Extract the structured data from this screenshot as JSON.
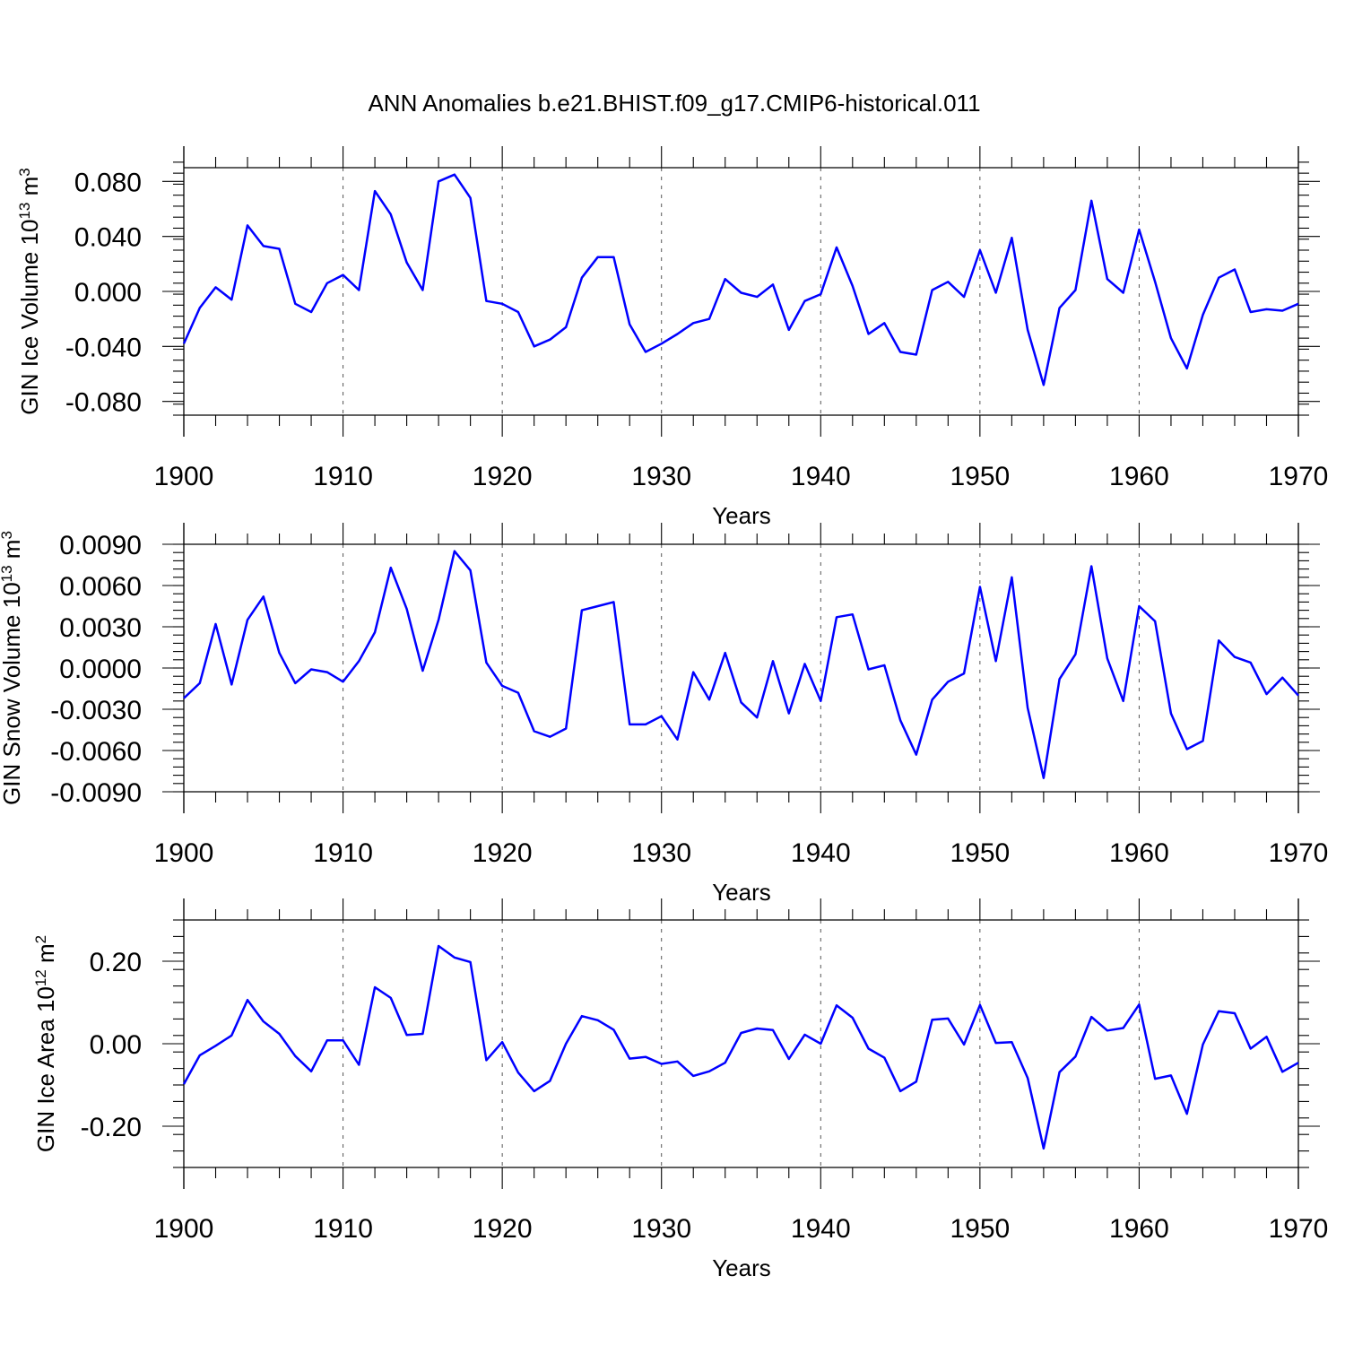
{
  "title": "ANN Anomalies b.e21.BHIST.f09_g17.CMIP6-historical.011",
  "line_color": "#0000ff",
  "chart_data": [
    {
      "type": "line",
      "name": "ice-volume",
      "xlabel": "Years",
      "ylabel_main": "GIN Ice Volume 10",
      "ylabel_exp": "13",
      "ylabel_unit": " m",
      "ylabel_unit_exp": "3",
      "xlim": [
        1900,
        1970
      ],
      "ylim": [
        -0.09,
        0.09
      ],
      "grid": "dashed vertical every 10 years",
      "xticks": [
        "1900",
        "1910",
        "1920",
        "1930",
        "1940",
        "1950",
        "1960",
        "1970"
      ],
      "yticks": [
        {
          "value": 0.08,
          "label": "0.080"
        },
        {
          "value": 0.04,
          "label": "0.040"
        },
        {
          "value": 0.0,
          "label": "0.000"
        },
        {
          "value": -0.04,
          "label": "-0.040"
        },
        {
          "value": -0.08,
          "label": "-0.080"
        }
      ],
      "x": [
        1900,
        1901,
        1902,
        1903,
        1904,
        1905,
        1906,
        1907,
        1908,
        1909,
        1910,
        1911,
        1912,
        1913,
        1914,
        1915,
        1916,
        1917,
        1918,
        1919,
        1920,
        1921,
        1922,
        1923,
        1924,
        1925,
        1926,
        1927,
        1928,
        1929,
        1930,
        1931,
        1932,
        1933,
        1934,
        1935,
        1936,
        1937,
        1938,
        1939,
        1940,
        1941,
        1942,
        1943,
        1944,
        1945,
        1946,
        1947,
        1948,
        1949,
        1950,
        1951,
        1952,
        1953,
        1954,
        1955,
        1956,
        1957,
        1958,
        1959,
        1960,
        1961,
        1962,
        1963,
        1964,
        1965,
        1966,
        1967,
        1968,
        1969,
        1970
      ],
      "values": [
        -0.038,
        -0.012,
        0.003,
        -0.006,
        0.048,
        0.033,
        0.031,
        -0.009,
        -0.015,
        0.006,
        0.012,
        0.001,
        0.073,
        0.056,
        0.021,
        0.001,
        0.08,
        0.085,
        0.068,
        -0.007,
        -0.009,
        -0.015,
        -0.04,
        -0.035,
        -0.026,
        0.01,
        0.025,
        0.025,
        -0.024,
        -0.044,
        -0.038,
        -0.031,
        -0.023,
        -0.02,
        0.009,
        -0.001,
        -0.004,
        0.005,
        -0.028,
        -0.007,
        -0.002,
        0.032,
        0.004,
        -0.031,
        -0.023,
        -0.044,
        -0.046,
        0.001,
        0.007,
        -0.004,
        0.03,
        -0.001,
        0.039,
        -0.028,
        -0.068,
        -0.012,
        0.001,
        0.066,
        0.009,
        -0.001,
        0.045,
        0.007,
        -0.034,
        -0.056,
        -0.017,
        0.01,
        0.016,
        -0.015,
        -0.013,
        -0.014,
        -0.009
      ]
    },
    {
      "type": "line",
      "name": "snow-volume",
      "xlabel": "Years",
      "ylabel_main": "GIN Snow Volume 10",
      "ylabel_exp": "13",
      "ylabel_unit": " m",
      "ylabel_unit_exp": "3",
      "xlim": [
        1900,
        1970
      ],
      "ylim": [
        -0.009,
        0.009
      ],
      "grid": "dashed vertical every 10 years",
      "xticks": [
        "1900",
        "1910",
        "1920",
        "1930",
        "1940",
        "1950",
        "1960",
        "1970"
      ],
      "yticks": [
        {
          "value": 0.009,
          "label": "0.0090"
        },
        {
          "value": 0.006,
          "label": "0.0060"
        },
        {
          "value": 0.003,
          "label": "0.0030"
        },
        {
          "value": 0.0,
          "label": "0.0000"
        },
        {
          "value": -0.003,
          "label": "-0.0030"
        },
        {
          "value": -0.006,
          "label": "-0.0060"
        },
        {
          "value": -0.009,
          "label": "-0.0090"
        }
      ],
      "x": [
        1900,
        1901,
        1902,
        1903,
        1904,
        1905,
        1906,
        1907,
        1908,
        1909,
        1910,
        1911,
        1912,
        1913,
        1914,
        1915,
        1916,
        1917,
        1918,
        1919,
        1920,
        1921,
        1922,
        1923,
        1924,
        1925,
        1926,
        1927,
        1928,
        1929,
        1930,
        1931,
        1932,
        1933,
        1934,
        1935,
        1936,
        1937,
        1938,
        1939,
        1940,
        1941,
        1942,
        1943,
        1944,
        1945,
        1946,
        1947,
        1948,
        1949,
        1950,
        1951,
        1952,
        1953,
        1954,
        1955,
        1956,
        1957,
        1958,
        1959,
        1960,
        1961,
        1962,
        1963,
        1964,
        1965,
        1966,
        1967,
        1968,
        1969,
        1970
      ],
      "values": [
        -0.0022,
        -0.0011,
        0.0032,
        -0.0012,
        0.0035,
        0.0052,
        0.0011,
        -0.0011,
        -0.0001,
        -0.0003,
        -0.001,
        0.0005,
        0.0026,
        0.0073,
        0.0043,
        -0.0002,
        0.0035,
        0.0085,
        0.0071,
        0.0004,
        -0.0013,
        -0.0018,
        -0.0046,
        -0.005,
        -0.0044,
        0.0042,
        0.0045,
        0.0048,
        -0.0041,
        -0.0041,
        -0.0035,
        -0.0052,
        -0.0003,
        -0.0023,
        0.0011,
        -0.0025,
        -0.0036,
        0.0005,
        -0.0033,
        0.0003,
        -0.0024,
        0.0037,
        0.0039,
        -0.0001,
        0.0002,
        -0.0038,
        -0.0063,
        -0.0023,
        -0.001,
        -0.0004,
        0.0059,
        0.0005,
        0.0066,
        -0.0029,
        -0.008,
        -0.0008,
        0.001,
        0.0074,
        0.0007,
        -0.0024,
        0.0045,
        0.0034,
        -0.0033,
        -0.0059,
        -0.0053,
        0.002,
        0.0008,
        0.0004,
        -0.0019,
        -0.0007,
        -0.002
      ]
    },
    {
      "type": "line",
      "name": "ice-area",
      "xlabel": "Years",
      "ylabel_main": "GIN Ice Area 10",
      "ylabel_exp": "12",
      "ylabel_unit": " m",
      "ylabel_unit_exp": "2",
      "xlim": [
        1900,
        1970
      ],
      "ylim": [
        -0.3,
        0.3
      ],
      "grid": "dashed vertical every 10 years",
      "xticks": [
        "1900",
        "1910",
        "1920",
        "1930",
        "1940",
        "1950",
        "1960",
        "1970"
      ],
      "yticks": [
        {
          "value": 0.2,
          "label": "0.20"
        },
        {
          "value": 0.0,
          "label": "0.00"
        },
        {
          "value": -0.2,
          "label": "-0.20"
        }
      ],
      "x": [
        1900,
        1901,
        1902,
        1903,
        1904,
        1905,
        1906,
        1907,
        1908,
        1909,
        1910,
        1911,
        1912,
        1913,
        1914,
        1915,
        1916,
        1917,
        1918,
        1919,
        1920,
        1921,
        1922,
        1923,
        1924,
        1925,
        1926,
        1927,
        1928,
        1929,
        1930,
        1931,
        1932,
        1933,
        1934,
        1935,
        1936,
        1937,
        1938,
        1939,
        1940,
        1941,
        1942,
        1943,
        1944,
        1945,
        1946,
        1947,
        1948,
        1949,
        1950,
        1951,
        1952,
        1953,
        1954,
        1955,
        1956,
        1957,
        1958,
        1959,
        1960,
        1961,
        1962,
        1963,
        1964,
        1965,
        1966,
        1967,
        1968,
        1969,
        1970
      ],
      "values": [
        -0.098,
        -0.028,
        -0.005,
        0.02,
        0.106,
        0.054,
        0.024,
        -0.03,
        -0.067,
        0.008,
        0.008,
        -0.051,
        0.137,
        0.111,
        0.021,
        0.024,
        0.237,
        0.209,
        0.198,
        -0.04,
        0.004,
        -0.07,
        -0.115,
        -0.09,
        0.0,
        0.067,
        0.057,
        0.034,
        -0.036,
        -0.032,
        -0.049,
        -0.043,
        -0.078,
        -0.067,
        -0.046,
        0.026,
        0.037,
        0.033,
        -0.037,
        0.022,
        0.0,
        0.093,
        0.063,
        -0.012,
        -0.034,
        -0.115,
        -0.092,
        0.058,
        0.061,
        -0.002,
        0.094,
        0.002,
        0.004,
        -0.083,
        -0.254,
        -0.069,
        -0.031,
        0.065,
        0.032,
        0.038,
        0.095,
        -0.085,
        -0.077,
        -0.17,
        -0.002,
        0.079,
        0.074,
        -0.012,
        0.017,
        -0.068,
        -0.046
      ]
    }
  ]
}
